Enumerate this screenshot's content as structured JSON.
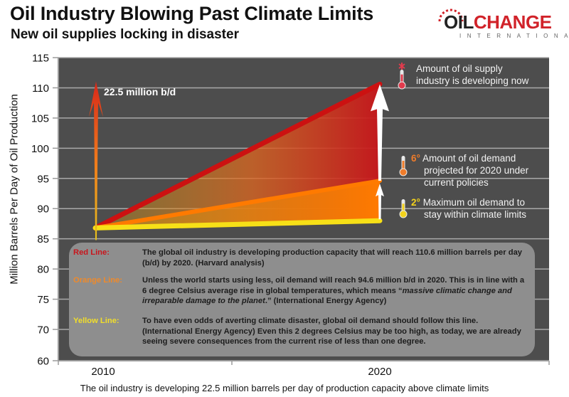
{
  "header": {
    "title": "Oil Industry Blowing Past Climate Limits",
    "subtitle": "New oil supplies locking in disaster"
  },
  "logo": {
    "oil": "OIL",
    "change": "CHANGE",
    "sub": "INTERNATIONAL",
    "brand_color": "#d1232a"
  },
  "chart_data": {
    "type": "line",
    "title": "Oil Industry Blowing Past Climate Limits",
    "subtitle": "New oil supplies locking in disaster",
    "xlabel": "",
    "ylabel": "Million Barrels Per Day of Oil Production",
    "x": [
      2010,
      2020
    ],
    "x_tick_labels": [
      "2010",
      "2020"
    ],
    "y_ticks": [
      60,
      70,
      75,
      80,
      85,
      90,
      95,
      100,
      105,
      110,
      115
    ],
    "y_tick_labels": [
      "60",
      "70",
      "75",
      "80",
      "85",
      "90",
      "95",
      "100",
      "105",
      "110",
      "115"
    ],
    "ylim": [
      60,
      115
    ],
    "y_axis_break": "60 to 70 drawn as a single interval",
    "grid": true,
    "series": [
      {
        "name": "Red Line",
        "color": "#cc1111",
        "values": [
          86.8,
          110.6
        ]
      },
      {
        "name": "Orange Line",
        "color": "#ff7a00",
        "values": [
          86.8,
          94.6
        ]
      },
      {
        "name": "Yellow Line",
        "color": "#f7e017",
        "values": [
          86.8,
          88.0
        ]
      }
    ],
    "annotations": [
      {
        "text": "22.5 million b/d",
        "x": 2010,
        "from": 88.1,
        "to": 110.6,
        "kind": "gradient-arrow"
      },
      {
        "text": "",
        "x": 2020,
        "from": 94.6,
        "to": 110.6,
        "kind": "white-arrow"
      },
      {
        "text": "",
        "x": 2020,
        "from": 88.0,
        "to": 94.6,
        "kind": "white-arrow"
      }
    ],
    "legend_placement": "bottom-center"
  },
  "annotations": {
    "callout": "22.5 million b/d",
    "supply": {
      "line1": "Amount of oil supply",
      "line2": "industry is developing now",
      "color": "#e23b4d"
    },
    "six": {
      "deg": "6°",
      "line1": "Amount of oil demand",
      "line2": "projected for 2020 under",
      "line3": "current policies",
      "color": "#f07c2a"
    },
    "two": {
      "deg": "2°",
      "line1": "Maximum oil demand to",
      "line2": "stay within climate limits",
      "color": "#f3d21c"
    }
  },
  "legend": {
    "items": [
      {
        "key": "Red Line:",
        "color": "#c8161d",
        "desc": "The global oil industry is developing production capacity that will reach 110.6 million barrels per day (b/d) by 2020. (Harvard analysis)"
      },
      {
        "key": "Orange Line:",
        "color": "#f08a2a",
        "desc_a": "Unless the world starts using less, oil demand will reach 94.6 million b/d in 2020. This is in line with a 6 degree Celsius average rise in global temperatures, which means “",
        "desc_italic": "massive climatic change and irreparable damage to the planet",
        "desc_b": ".” (International Energy Agency)"
      },
      {
        "key": "Yellow Line:",
        "color": "#f2de2a",
        "desc": "To have even odds of averting climate disaster, global oil demand should follow this line. (International Energy Agency) Even this 2 degrees Celsius may be too high, as today, we are already seeing severe consequences from the current rise of less than one degree."
      }
    ]
  },
  "caption": "The oil industry is developing 22.5 million barrels per day of production capacity above climate limits",
  "colors": {
    "plot_bg": "#4d4d4d",
    "grid": "#a9a9a9",
    "legend_bg": "#8e8e8e"
  }
}
